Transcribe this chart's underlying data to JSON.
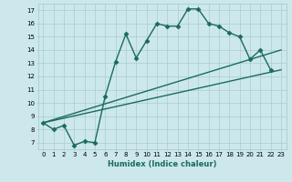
{
  "xlabel": "Humidex (Indice chaleur)",
  "bg_color": "#cce8ed",
  "line_color": "#1a6b5a",
  "grid_color": "#aacccc",
  "xlim": [
    -0.5,
    23.5
  ],
  "ylim": [
    6.5,
    17.5
  ],
  "xticks": [
    0,
    1,
    2,
    3,
    4,
    5,
    6,
    7,
    8,
    9,
    10,
    11,
    12,
    13,
    14,
    15,
    16,
    17,
    18,
    19,
    20,
    21,
    22,
    23
  ],
  "yticks": [
    7,
    8,
    9,
    10,
    11,
    12,
    13,
    14,
    15,
    16,
    17
  ],
  "line1_x": [
    0,
    1,
    2,
    3,
    4,
    5,
    6,
    7,
    8,
    9,
    10,
    11,
    12,
    13,
    14,
    15,
    16,
    17,
    18,
    19,
    20,
    21,
    22
  ],
  "line1_y": [
    8.5,
    8.0,
    8.3,
    6.8,
    7.1,
    7.0,
    10.5,
    13.1,
    15.2,
    13.4,
    14.7,
    16.0,
    15.8,
    15.8,
    17.1,
    17.1,
    16.0,
    15.8,
    15.3,
    15.0,
    13.3,
    14.0,
    12.5
  ],
  "line2_x": [
    0,
    23
  ],
  "line2_y": [
    8.5,
    12.5
  ],
  "line3_x": [
    0,
    23
  ],
  "line3_y": [
    8.5,
    14.0
  ],
  "marker": "D",
  "marker_size": 2.5,
  "linewidth": 1.0,
  "tick_fontsize": 5.0,
  "xlabel_fontsize": 6.0
}
